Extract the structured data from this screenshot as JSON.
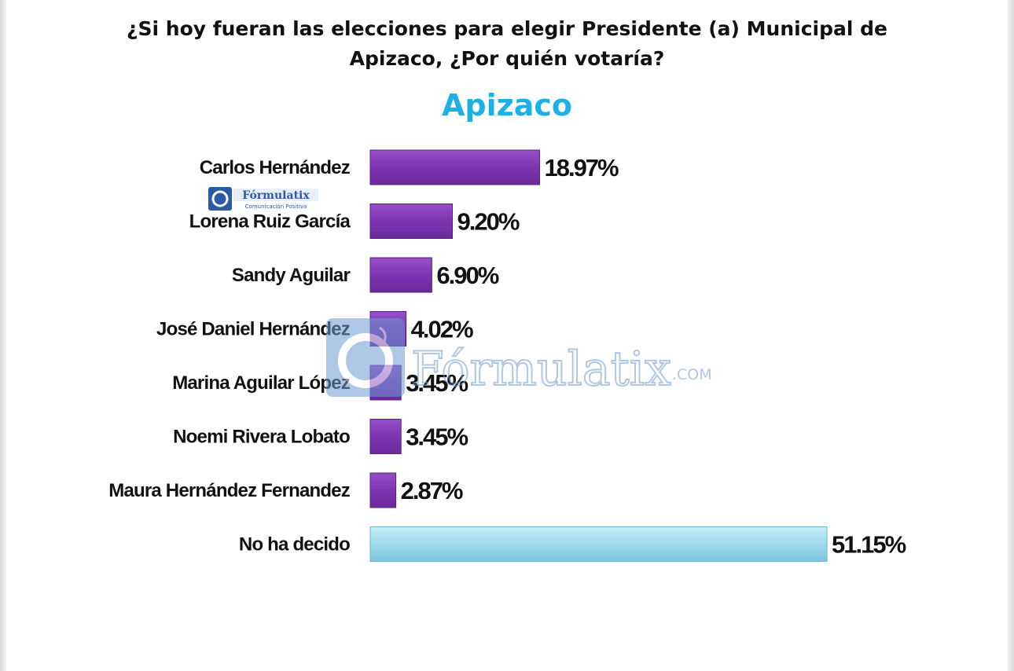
{
  "question": "¿Si hoy fueran las elecciones para elegir Presidente (a) Municipal de Apizaco, ¿Por quién votaría?",
  "logo": {
    "name": "Fórmulatix",
    "tagline": "Comunicación Positiva"
  },
  "watermark": {
    "name": "Fórmulatix",
    "suffix": ".COM"
  },
  "colors": {
    "candidate_bar": "#7d35b2",
    "undecided_bar": "#9edbec",
    "title": "#1cb0e6"
  },
  "chart_data": {
    "type": "bar",
    "orientation": "horizontal",
    "title": "Apizaco",
    "categories": [
      "Carlos Hernández",
      "Lorena Ruiz García",
      "Sandy Aguilar",
      "José Daniel Hernández",
      "Marina Aguilar López",
      "Noemi Rivera Lobato",
      "Maura Hernández Fernandez",
      "No ha decido"
    ],
    "values": [
      18.97,
      9.2,
      6.9,
      4.02,
      3.45,
      3.45,
      2.87,
      51.15
    ],
    "value_labels": [
      "18.97%",
      "9.20%",
      "6.90%",
      "4.02%",
      "3.45%",
      "3.45%",
      "2.87%",
      "51.15%"
    ],
    "xlabel": "",
    "ylabel": "",
    "xlim": [
      0,
      51.15
    ],
    "grid": false,
    "legend": "none"
  }
}
